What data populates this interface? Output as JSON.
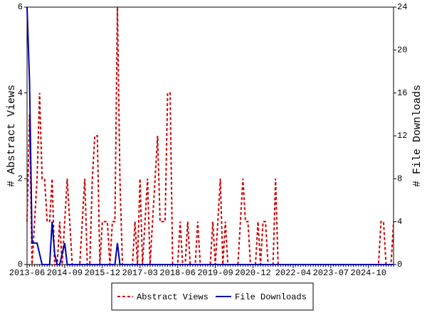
{
  "chart_data": {
    "type": "line",
    "y_label": "# Abstract Views",
    "y2_label": "# File Downloads",
    "categories": [
      "2013-06",
      null,
      null,
      null,
      null,
      null,
      null,
      null,
      null,
      null,
      null,
      null,
      null,
      null,
      null,
      "2014-09",
      null,
      null,
      null,
      null,
      null,
      null,
      null,
      null,
      null,
      null,
      null,
      null,
      null,
      null,
      "2015-12",
      null,
      null,
      null,
      null,
      null,
      null,
      null,
      null,
      null,
      null,
      null,
      null,
      null,
      null,
      "2017-03",
      null,
      null,
      null,
      null,
      null,
      null,
      null,
      null,
      null,
      null,
      null,
      null,
      null,
      null,
      "2018-06",
      null,
      null,
      null,
      null,
      null,
      null,
      null,
      null,
      null,
      null,
      null,
      null,
      null,
      null,
      "2019-09",
      null,
      null,
      null,
      null,
      null,
      null,
      null,
      null,
      null,
      null,
      null,
      null,
      null,
      null,
      "2020-12",
      null,
      null,
      null,
      null,
      null,
      null,
      null,
      null,
      null,
      null,
      null,
      null,
      null,
      null,
      null,
      "2022-04",
      null,
      null,
      null,
      null,
      null,
      null,
      null,
      null,
      null,
      null,
      null,
      null,
      null,
      null,
      "2023-07",
      null,
      null,
      null,
      null,
      null,
      null,
      null,
      null,
      null,
      null,
      null,
      null,
      null,
      null,
      "2024-10",
      null,
      null,
      null,
      null,
      null,
      null,
      null,
      null,
      null,
      null
    ],
    "series": [
      {
        "name": "Abstract Views",
        "color": "#cc0000",
        "dash": true,
        "values": [
          1,
          3.5,
          0,
          1,
          2,
          4,
          2,
          2,
          1,
          1,
          2,
          0,
          0,
          1,
          0,
          1,
          2,
          1,
          0,
          0,
          0,
          0,
          1,
          2,
          0,
          0,
          2,
          3,
          3,
          0,
          1,
          1,
          1,
          0,
          1,
          1,
          6,
          2,
          0,
          0,
          0,
          0,
          0,
          1,
          0,
          2,
          0,
          1,
          2,
          0,
          1,
          2,
          3,
          1,
          1,
          1,
          4,
          4,
          0,
          0,
          0,
          1,
          0,
          0,
          1,
          0,
          0,
          0,
          1,
          0,
          0,
          0,
          0,
          0,
          1,
          0,
          1,
          2,
          0,
          1,
          0,
          0,
          0,
          0,
          0,
          1,
          2,
          1,
          1,
          0,
          0,
          0,
          1,
          0,
          1,
          1,
          0,
          0,
          0,
          2,
          0,
          0,
          0,
          0,
          0,
          0,
          0,
          0,
          0,
          0,
          0,
          0,
          0,
          0,
          0,
          0,
          0,
          0,
          0,
          0,
          0,
          0,
          0,
          0,
          0,
          0,
          0,
          0,
          0,
          0,
          0,
          0,
          0,
          0,
          0,
          0,
          0,
          0,
          0,
          0,
          0,
          1,
          1,
          0,
          0,
          0,
          1
        ]
      },
      {
        "name": "File Downloads",
        "color": "#0000aa",
        "axis": "y2",
        "dash": false,
        "values": [
          24,
          17,
          2,
          2,
          2,
          1,
          0,
          0,
          0,
          0,
          4,
          1,
          0,
          0,
          1,
          2,
          0,
          0,
          0,
          0,
          0,
          0,
          0,
          0,
          0,
          0,
          0,
          0,
          0,
          0,
          0,
          0,
          0,
          0,
          0,
          0,
          2,
          0,
          0,
          0,
          0,
          0,
          0,
          0,
          0,
          0,
          0,
          0,
          0,
          0,
          0,
          0,
          0,
          0,
          0,
          0,
          0,
          0,
          0,
          0,
          0,
          0,
          0,
          0,
          0,
          0,
          0,
          0,
          0,
          0,
          0,
          0,
          0,
          0,
          0,
          0,
          0,
          0,
          0,
          0,
          0,
          0,
          0,
          0,
          0,
          0,
          0,
          0,
          0,
          0,
          0,
          0,
          0,
          0,
          0,
          0,
          0,
          0,
          0,
          0,
          0,
          0,
          0,
          0,
          0,
          0,
          0,
          0,
          0,
          0,
          0,
          0,
          0,
          0,
          0,
          0,
          0,
          0,
          0,
          0,
          0,
          0,
          0,
          0,
          0,
          0,
          0,
          0,
          0,
          0,
          0,
          0,
          0,
          0,
          0,
          0,
          0,
          0,
          0,
          0,
          0,
          0,
          0,
          0,
          0,
          0,
          0
        ]
      }
    ],
    "ylim": [
      0,
      6
    ],
    "yticks": [
      0,
      2,
      4,
      6
    ],
    "y2lim": [
      0,
      24
    ],
    "y2ticks": [
      0,
      4,
      8,
      12,
      16,
      20,
      24
    ],
    "legend": "bottom"
  }
}
